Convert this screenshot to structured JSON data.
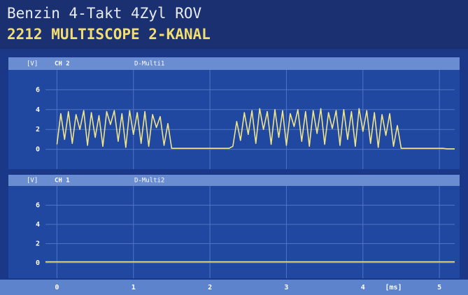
{
  "header": {
    "line1": "Benzin 4-Takt 4Zyl ROV",
    "line2": "2212 MULTISCOPE 2-KANAL"
  },
  "chart_data": [
    {
      "type": "line",
      "unit": "[V]",
      "channel": "CH 2",
      "source": "D-Multi1",
      "x": [
        0,
        0.05,
        0.1,
        0.15,
        0.2,
        0.25,
        0.3,
        0.35,
        0.4,
        0.45,
        0.5,
        0.55,
        0.6,
        0.65,
        0.7,
        0.75,
        0.8,
        0.85,
        0.9,
        0.95,
        1,
        1.05,
        1.1,
        1.15,
        1.2,
        1.25,
        1.3,
        1.35,
        1.4,
        1.45,
        1.5,
        1.55,
        1.6,
        1.65,
        1.7,
        1.75,
        1.8,
        1.85,
        1.9,
        1.95,
        2,
        2.05,
        2.1,
        2.15,
        2.2,
        2.25,
        2.3,
        2.35,
        2.4,
        2.45,
        2.5,
        2.55,
        2.6,
        2.65,
        2.7,
        2.75,
        2.8,
        2.85,
        2.9,
        2.95,
        3,
        3.05,
        3.1,
        3.15,
        3.2,
        3.25,
        3.3,
        3.35,
        3.4,
        3.45,
        3.5,
        3.55,
        3.6,
        3.65,
        3.7,
        3.75,
        3.8,
        3.85,
        3.9,
        3.95,
        4,
        4.05,
        4.1,
        4.15,
        4.2,
        4.25,
        4.3,
        4.35,
        4.4,
        4.45,
        4.5,
        4.55,
        4.6,
        4.65,
        4.7,
        4.75,
        4.8,
        4.85,
        4.9,
        4.95,
        5,
        5.05,
        5.1,
        5.15,
        5.2
      ],
      "series": [
        {
          "color": "#efe48a",
          "values": [
            0.5,
            3.6,
            1.0,
            3.8,
            0.6,
            3.5,
            2.0,
            3.9,
            0.4,
            3.7,
            1.2,
            3.4,
            0.3,
            3.8,
            2.5,
            3.9,
            0.8,
            3.6,
            0.2,
            3.9,
            1.5,
            3.7,
            0.6,
            3.8,
            0.3,
            3.5,
            2.2,
            3.3,
            0.4,
            2.6,
            0.1,
            0.1,
            0.1,
            0.1,
            0.1,
            0.1,
            0.1,
            0.1,
            0.1,
            0.1,
            0.1,
            0.1,
            0.1,
            0.1,
            0.1,
            0.1,
            0.3,
            2.8,
            0.9,
            3.7,
            1.5,
            3.9,
            0.6,
            4.1,
            2.0,
            3.8,
            0.5,
            4.0,
            1.2,
            3.9,
            0.4,
            3.6,
            2.3,
            4.0,
            0.8,
            3.8,
            0.3,
            3.9,
            1.6,
            4.1,
            0.5,
            3.7,
            2.1,
            3.9,
            0.4,
            4.0,
            1.0,
            3.8,
            0.3,
            4.1,
            1.8,
            3.9,
            0.6,
            3.7,
            0.2,
            3.5,
            1.4,
            3.6,
            0.3,
            2.4,
            0.1,
            0.1,
            0.1,
            0.1,
            0.1,
            0.1,
            0.1,
            0.1,
            0.1,
            0.1,
            0.1,
            0.1,
            0.05,
            0.05,
            0.05
          ]
        }
      ],
      "xlim": [
        -0.15,
        5.2
      ],
      "xticks": [
        0,
        1,
        2,
        3,
        4,
        5
      ],
      "ylim": [
        -2,
        8
      ],
      "yticks": [
        0,
        2,
        4,
        6
      ],
      "grid": true
    },
    {
      "type": "line",
      "unit": "[V]",
      "channel": "CH 1",
      "source": "D-Multi2",
      "x": [
        -0.15,
        5.2
      ],
      "series": [
        {
          "color": "#efe48a",
          "values": [
            0.1,
            0.1
          ]
        }
      ],
      "xlim": [
        -0.15,
        5.2
      ],
      "xticks": [
        0,
        1,
        2,
        3,
        4,
        5
      ],
      "x_label": "[ms]",
      "ylim": [
        -1.6,
        8
      ],
      "yticks": [
        0,
        2,
        4,
        6
      ],
      "grid": true
    }
  ]
}
